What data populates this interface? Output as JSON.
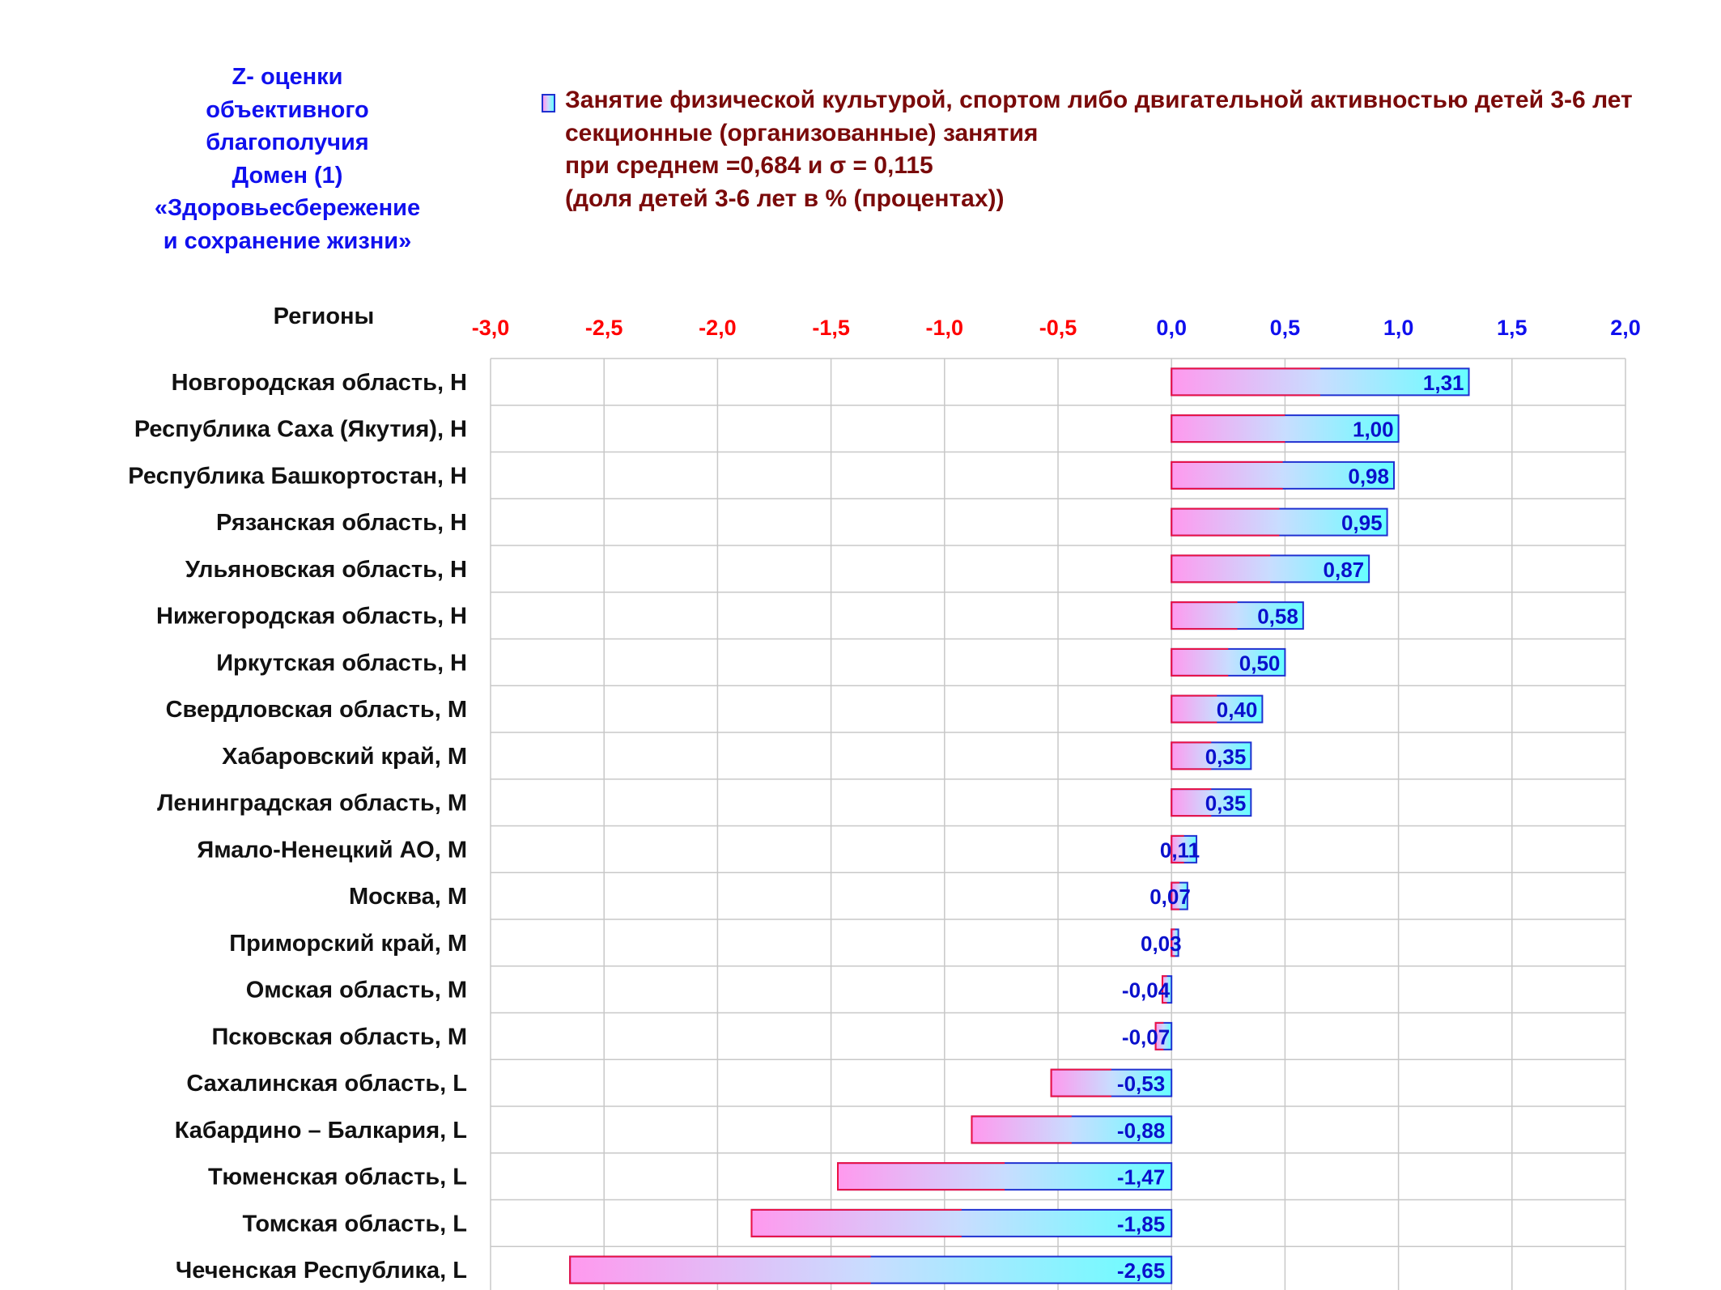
{
  "header": {
    "domain_title_lines": [
      "Z- оценки",
      "объективного",
      "благополучия",
      "Домен (1)",
      "«Здоровьесбережение",
      "и сохранение жизни»"
    ],
    "legend_lines": [
      "Занятие физической культурой, спортом либо двигательной активностью детей 3-6 лет",
      "секционные (организованные) занятия",
      "при среднем =0,684  и σ = 0,115",
      "(доля детей 3-6 лет в % (процентах))"
    ],
    "regions_label": "Регионы"
  },
  "colors": {
    "negative_tick": "#ff0000",
    "positive_tick": "#1010ee",
    "value_label": "#0a10cc",
    "bar_left": "#ff99ee",
    "bar_mid": "#c8ddff",
    "bar_right": "#66ffff",
    "grid": "#c8c8c8"
  },
  "chart_data": {
    "type": "bar",
    "orientation": "horizontal",
    "xlim": [
      -3.0,
      2.0
    ],
    "ticks": [
      -3.0,
      -2.5,
      -2.0,
      -1.5,
      -1.0,
      -0.5,
      0.0,
      0.5,
      1.0,
      1.5,
      2.0
    ],
    "tick_labels": [
      "-3,0",
      "-2,5",
      "-2,0",
      "-1,5",
      "-1,0",
      "-0,5",
      "0,0",
      "0,5",
      "1,0",
      "1,5",
      "2,0"
    ],
    "grid": true,
    "categories": [
      "Новгородская область,  H",
      "Республика Саха (Якутия),  H",
      "Республика Башкортостан,  H",
      "Рязанская область,  H",
      "Ульяновская область,  H",
      "Нижегородская область,  H",
      "Иркутская область,  H",
      "Свердловская область,  M",
      "Хабаровский край,  M",
      "Ленинградская область,  M",
      "Ямало-Ненецкий АО,  M",
      "Москва,  M",
      "Приморский край,  M",
      "Омская область,  M",
      "Псковская область,  M",
      "Сахалинская область,  L",
      "Кабардино – Балкария,  L",
      "Тюменская область,  L",
      "Томская область,  L",
      "Чеченская Республика,  L"
    ],
    "values": [
      1.31,
      1.0,
      0.98,
      0.95,
      0.87,
      0.58,
      0.5,
      0.4,
      0.35,
      0.35,
      0.11,
      0.07,
      0.03,
      -0.04,
      -0.07,
      -0.53,
      -0.88,
      -1.47,
      -1.85,
      -2.65
    ],
    "value_labels": [
      "1,31",
      "1,00",
      "0,98",
      "0,95",
      "0,87",
      "0,58",
      "0,50",
      "0,40",
      "0,35",
      "0,35",
      "0,11",
      "0,07",
      "0,03",
      "-0,04",
      "-0,07",
      "-0,53",
      "-0,88",
      "-1,47",
      "-1,85",
      "-2,65"
    ]
  }
}
